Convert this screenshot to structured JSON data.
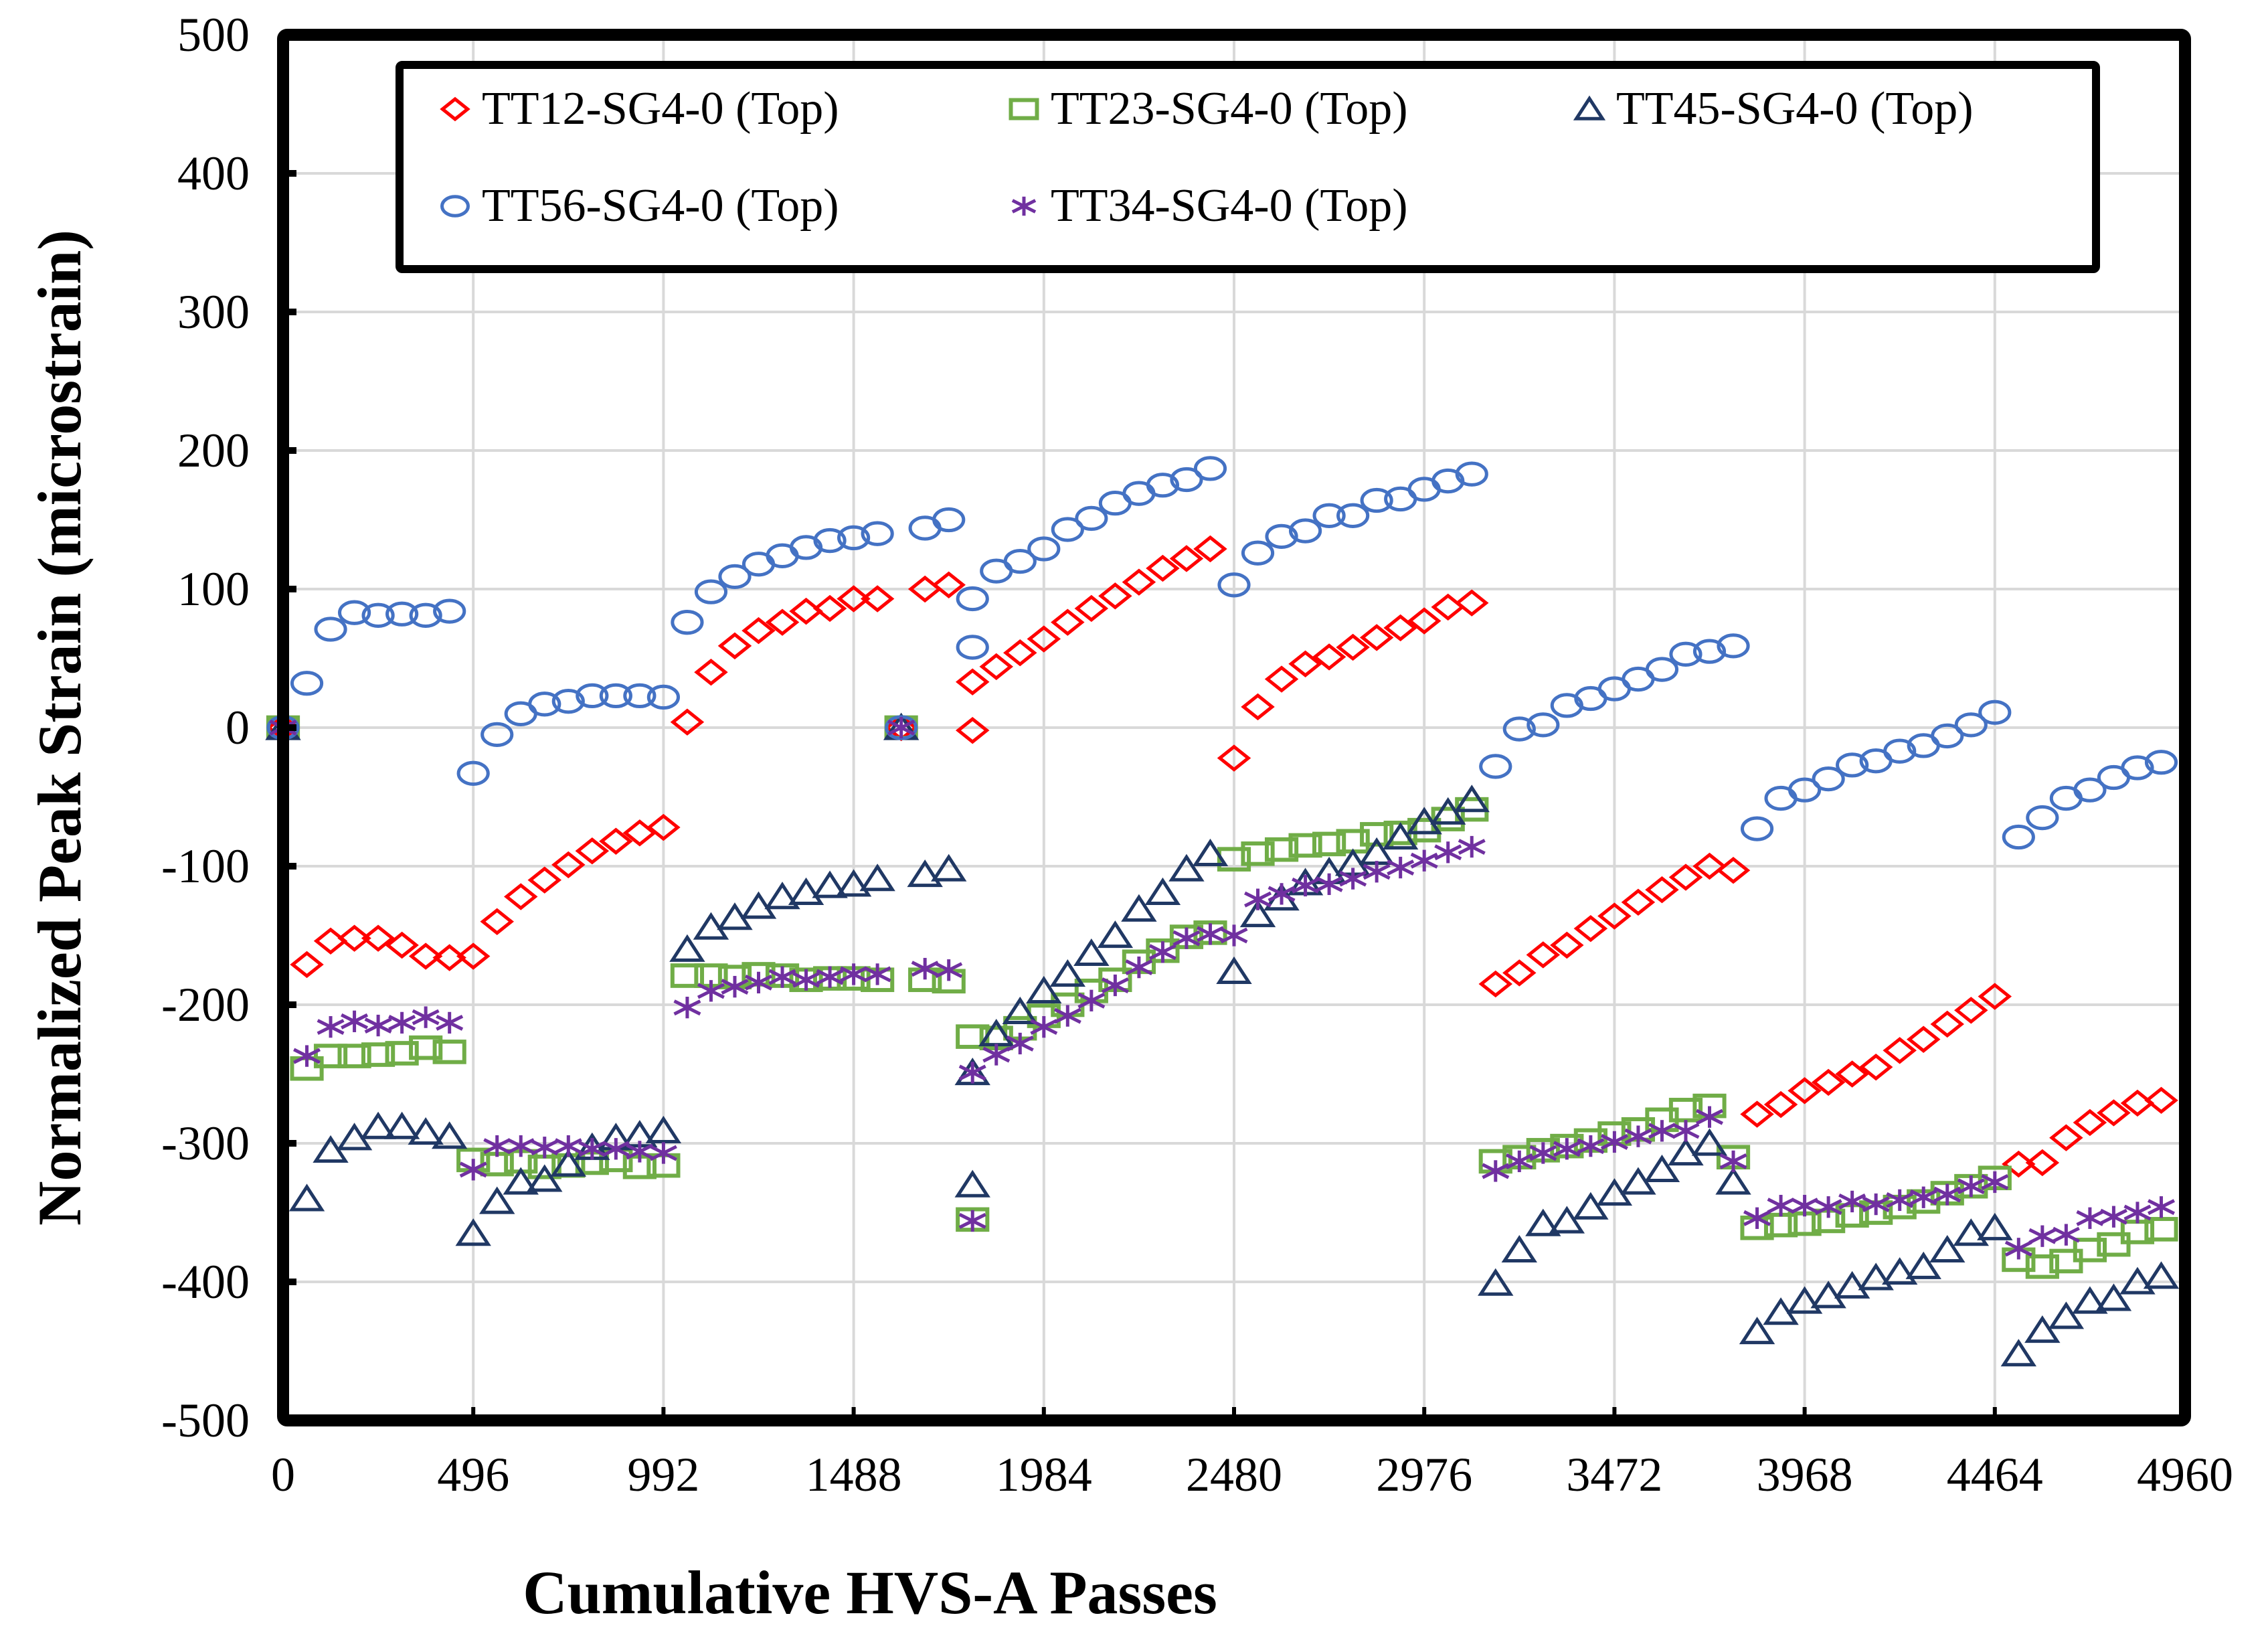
{
  "chart_data": {
    "type": "scatter",
    "title": "",
    "xlabel": "Cumulative HVS-A Passes",
    "ylabel": "Normalized Peak Strain (microstrain)",
    "xlim": [
      0,
      4960
    ],
    "ylim": [
      -500,
      500
    ],
    "xticks": [
      0,
      496,
      992,
      1488,
      1984,
      2480,
      2976,
      3472,
      3968,
      4464,
      4960
    ],
    "xtick_labels": [
      "0",
      "496",
      "992",
      "1488",
      "1984",
      "2480",
      "2976",
      "3472",
      "3968",
      "4464",
      "4960"
    ],
    "yticks": [
      500,
      400,
      300,
      200,
      100,
      0,
      -100,
      -200,
      -300,
      -400,
      -500
    ],
    "ytick_labels": [
      "500",
      "400",
      "300",
      "200",
      "100",
      "0",
      "-100",
      "-200",
      "-300",
      "-400",
      "-500"
    ],
    "grid": true,
    "legend_position": "top",
    "series": [
      {
        "name": "TT12-SG4-0 (Top)",
        "marker": "diamond",
        "color": "#FF0000",
        "x": [
          0,
          62,
          124,
          186,
          248,
          310,
          372,
          434,
          496,
          558,
          620,
          682,
          744,
          806,
          868,
          930,
          992,
          1054,
          1116,
          1178,
          1240,
          1302,
          1364,
          1426,
          1488,
          1550,
          1612,
          1674,
          1736,
          1798,
          1798,
          1860,
          1922,
          1984,
          2046,
          2108,
          2170,
          2232,
          2294,
          2356,
          2418,
          2480,
          2542,
          2604,
          2666,
          2728,
          2790,
          2852,
          2914,
          2976,
          3038,
          3100,
          3162,
          3224,
          3286,
          3348,
          3410,
          3472,
          3534,
          3596,
          3658,
          3720,
          3782,
          3844,
          3906,
          3968,
          4030,
          4092,
          4154,
          4216,
          4278,
          4340,
          4402,
          4464,
          4526,
          4588,
          4650,
          4712,
          4774,
          4836,
          4898
        ],
        "y": [
          0,
          -171,
          -154,
          -152,
          -152,
          -157,
          -165,
          -166,
          -165,
          -140,
          -122,
          -110,
          -99,
          -89,
          -82,
          -76,
          -72,
          4,
          40,
          59,
          70,
          76,
          84,
          86,
          93,
          93,
          0,
          100,
          103,
          -2,
          33,
          44,
          54,
          64,
          76,
          86,
          95,
          105,
          115,
          122,
          129,
          -22,
          15,
          35,
          46,
          51,
          58,
          65,
          72,
          77,
          87,
          90,
          -185,
          -177,
          -164,
          -157,
          -145,
          -136,
          -126,
          -117,
          -108,
          -100,
          -103,
          -279,
          -272,
          -262,
          -256,
          -250,
          -245,
          -233,
          -225,
          -214,
          -204,
          -194,
          -315,
          -314,
          -296,
          -285,
          -278,
          -271,
          -269
        ]
      },
      {
        "name": "TT23-SG4-0 (Top)",
        "marker": "square",
        "color": "#70AD47",
        "x": [
          0,
          62,
          124,
          186,
          248,
          310,
          372,
          434,
          496,
          558,
          620,
          682,
          744,
          806,
          868,
          930,
          992,
          1054,
          1116,
          1178,
          1240,
          1302,
          1364,
          1426,
          1488,
          1550,
          1612,
          1674,
          1736,
          1798,
          1798,
          1860,
          1922,
          1984,
          2046,
          2108,
          2170,
          2232,
          2294,
          2356,
          2418,
          2480,
          2542,
          2604,
          2666,
          2728,
          2790,
          2852,
          2914,
          2976,
          3038,
          3100,
          3162,
          3224,
          3286,
          3348,
          3410,
          3472,
          3534,
          3596,
          3658,
          3720,
          3782,
          3844,
          3906,
          3968,
          4030,
          4092,
          4154,
          4216,
          4278,
          4340,
          4402,
          4464,
          4526,
          4588,
          4650,
          4712,
          4774,
          4836,
          4898
        ],
        "y": [
          0,
          -246,
          -237,
          -237,
          -236,
          -235,
          -231,
          -234,
          -312,
          -315,
          -313,
          -317,
          -316,
          -314,
          -312,
          -317,
          -316,
          -179,
          -179,
          -180,
          -178,
          -179,
          -182,
          -181,
          -181,
          -182,
          0,
          -182,
          -183,
          -355,
          -223,
          -224,
          -217,
          -208,
          -200,
          -190,
          -182,
          -169,
          -161,
          -151,
          -148,
          -95,
          -91,
          -88,
          -85,
          -84,
          -82,
          -77,
          -76,
          -74,
          -66,
          -59,
          -313,
          -310,
          -305,
          -302,
          -298,
          -293,
          -290,
          -283,
          -276,
          -273,
          -310,
          -361,
          -359,
          -358,
          -356,
          -352,
          -350,
          -346,
          -342,
          -336,
          -331,
          -325,
          -384,
          -389,
          -385,
          -377,
          -373,
          -364,
          -362
        ]
      },
      {
        "name": "TT45-SG4-0 (Top)",
        "marker": "triangle",
        "color": "#203864",
        "x": [
          0,
          62,
          124,
          186,
          248,
          310,
          372,
          434,
          496,
          558,
          620,
          682,
          744,
          806,
          868,
          930,
          992,
          1054,
          1116,
          1178,
          1240,
          1302,
          1364,
          1426,
          1488,
          1550,
          1612,
          1674,
          1736,
          1798,
          1798,
          1860,
          1922,
          1984,
          2046,
          2108,
          2170,
          2232,
          2294,
          2356,
          2418,
          2480,
          2542,
          2604,
          2666,
          2728,
          2790,
          2852,
          2914,
          2976,
          3038,
          3100,
          3162,
          3224,
          3286,
          3348,
          3410,
          3472,
          3534,
          3596,
          3658,
          3720,
          3782,
          3844,
          3906,
          3968,
          4030,
          4092,
          4154,
          4216,
          4278,
          4340,
          4402,
          4464,
          4526,
          4588,
          4650,
          4712,
          4774,
          4836,
          4898
        ],
        "y": [
          0,
          -340,
          -305,
          -296,
          -288,
          -288,
          -292,
          -295,
          -365,
          -342,
          -328,
          -326,
          -315,
          -303,
          -296,
          -294,
          -291,
          -160,
          -144,
          -137,
          -129,
          -122,
          -119,
          -114,
          -113,
          -109,
          0,
          -106,
          -102,
          -330,
          -249,
          -221,
          -205,
          -190,
          -178,
          -163,
          -150,
          -131,
          -119,
          -102,
          -91,
          -176,
          -135,
          -123,
          -112,
          -104,
          -98,
          -90,
          -79,
          -68,
          -61,
          -52,
          -401,
          -377,
          -358,
          -356,
          -346,
          -336,
          -328,
          -319,
          -307,
          -300,
          -328,
          -436,
          -422,
          -414,
          -410,
          -403,
          -397,
          -393,
          -389,
          -377,
          -365,
          -361,
          -452,
          -435,
          -425,
          -414,
          -412,
          -400,
          -396
        ]
      },
      {
        "name": "TT56-SG4-0 (Top)",
        "marker": "circle",
        "color": "#4472C4",
        "x": [
          0,
          62,
          124,
          186,
          248,
          310,
          372,
          434,
          496,
          558,
          620,
          682,
          744,
          806,
          868,
          930,
          992,
          1054,
          1116,
          1178,
          1240,
          1302,
          1364,
          1426,
          1488,
          1550,
          1612,
          1674,
          1736,
          1798,
          1798,
          1860,
          1922,
          1984,
          2046,
          2108,
          2170,
          2232,
          2294,
          2356,
          2418,
          2480,
          2542,
          2604,
          2666,
          2728,
          2790,
          2852,
          2914,
          2976,
          3038,
          3100,
          3162,
          3224,
          3286,
          3348,
          3410,
          3472,
          3534,
          3596,
          3658,
          3720,
          3782,
          3844,
          3906,
          3968,
          4030,
          4092,
          4154,
          4216,
          4278,
          4340,
          4402,
          4464,
          4526,
          4588,
          4650,
          4712,
          4774,
          4836,
          4898
        ],
        "y": [
          0,
          32,
          71,
          83,
          81,
          82,
          81,
          84,
          -33,
          -5,
          10,
          17,
          19,
          23,
          23,
          23,
          22,
          76,
          98,
          109,
          118,
          124,
          130,
          135,
          137,
          140,
          0,
          144,
          150,
          58,
          93,
          113,
          120,
          129,
          143,
          151,
          162,
          169,
          175,
          179,
          187,
          103,
          126,
          138,
          142,
          153,
          153,
          164,
          165,
          172,
          178,
          183,
          -28,
          -1,
          2,
          16,
          21,
          28,
          35,
          42,
          53,
          55,
          59,
          -73,
          -51,
          -45,
          -37,
          -27,
          -24,
          -17,
          -13,
          -6,
          2,
          11,
          -79,
          -65,
          -51,
          -45,
          -36,
          -29,
          -25
        ]
      },
      {
        "name": "TT34-SG4-0 (Top)",
        "marker": "star",
        "color": "#7030A0",
        "x": [
          0,
          62,
          124,
          186,
          248,
          310,
          372,
          434,
          496,
          558,
          620,
          682,
          744,
          806,
          868,
          930,
          992,
          1054,
          1116,
          1178,
          1240,
          1302,
          1364,
          1426,
          1488,
          1550,
          1612,
          1674,
          1736,
          1798,
          1798,
          1860,
          1922,
          1984,
          2046,
          2108,
          2170,
          2232,
          2294,
          2356,
          2418,
          2480,
          2542,
          2604,
          2666,
          2728,
          2790,
          2852,
          2914,
          2976,
          3038,
          3100,
          3162,
          3224,
          3286,
          3348,
          3410,
          3472,
          3534,
          3596,
          3658,
          3720,
          3782,
          3844,
          3906,
          3968,
          4030,
          4092,
          4154,
          4216,
          4278,
          4340,
          4402,
          4464,
          4526,
          4588,
          4650,
          4712,
          4774,
          4836,
          4898
        ],
        "y": [
          0,
          -237,
          -216,
          -212,
          -215,
          -213,
          -209,
          -213,
          -319,
          -302,
          -302,
          -303,
          -302,
          -304,
          -304,
          -306,
          -307,
          -202,
          -190,
          -187,
          -184,
          -180,
          -182,
          -180,
          -178,
          -178,
          0,
          -174,
          -175,
          -356,
          -249,
          -236,
          -228,
          -216,
          -208,
          -197,
          -186,
          -173,
          -162,
          -152,
          -149,
          -150,
          -124,
          -120,
          -114,
          -113,
          -109,
          -104,
          -101,
          -96,
          -90,
          -86,
          -320,
          -313,
          -307,
          -304,
          -302,
          -299,
          -295,
          -291,
          -291,
          -281,
          -313,
          -354,
          -345,
          -345,
          -346,
          -342,
          -344,
          -341,
          -339,
          -337,
          -331,
          -328,
          -376,
          -367,
          -366,
          -354,
          -353,
          -350,
          -346
        ]
      }
    ]
  }
}
